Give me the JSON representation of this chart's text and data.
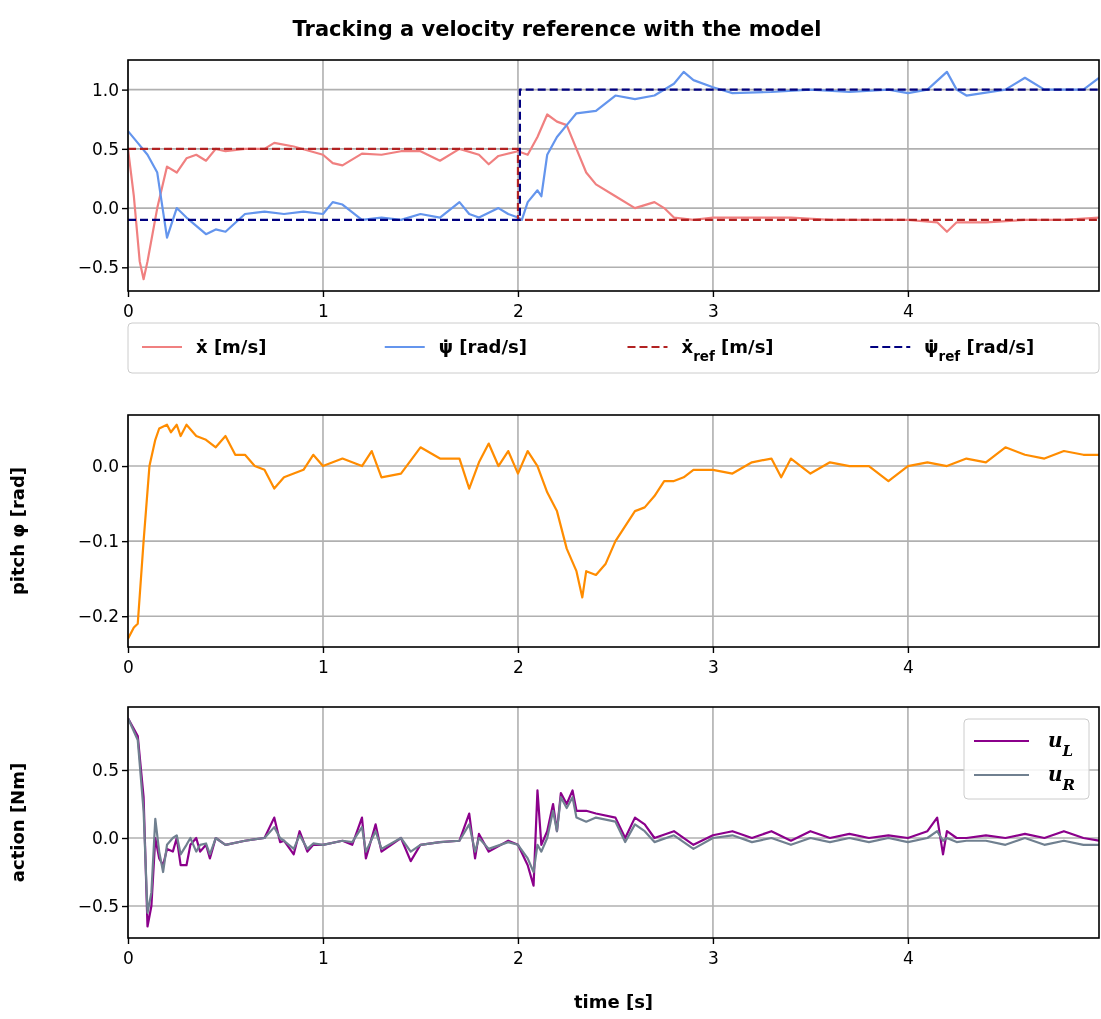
{
  "chart_data": [
    {
      "type": "line",
      "title": "Tracking a velocity reference with the model",
      "xlim": [
        0,
        4.98
      ],
      "xticks": [
        0,
        1,
        2,
        3,
        4
      ],
      "ylim": [
        -0.7,
        1.25
      ],
      "yticks": [
        {
          "value": -0.5,
          "label": "−0.5"
        },
        {
          "value": 0,
          "label": "0.0"
        },
        {
          "value": 0.5,
          "label": "0.5"
        },
        {
          "value": 1,
          "label": "1.0"
        }
      ],
      "grid": true,
      "legend": "bottom",
      "series": [
        {
          "name": "ẋ [m/s]",
          "color": "#f08080",
          "line_style": "solid",
          "x": [
            0,
            0.03,
            0.06,
            0.08,
            0.1,
            0.15,
            0.2,
            0.25,
            0.3,
            0.35,
            0.4,
            0.45,
            0.5,
            0.6,
            0.7,
            0.75,
            0.85,
            1.0,
            1.05,
            1.1,
            1.2,
            1.3,
            1.4,
            1.5,
            1.6,
            1.7,
            1.8,
            1.85,
            1.9,
            2.0,
            2.05,
            2.1,
            2.15,
            2.2,
            2.25,
            2.3,
            2.35,
            2.4,
            2.5,
            2.6,
            2.7,
            2.75,
            2.8,
            2.9,
            3.0,
            3.2,
            3.4,
            3.6,
            3.8,
            4.0,
            4.15,
            4.2,
            4.25,
            4.4,
            4.6,
            4.8,
            4.98
          ],
          "values": [
            0.5,
            0.1,
            -0.45,
            -0.6,
            -0.45,
            0.0,
            0.35,
            0.3,
            0.42,
            0.45,
            0.4,
            0.5,
            0.48,
            0.5,
            0.5,
            0.55,
            0.52,
            0.45,
            0.38,
            0.36,
            0.46,
            0.45,
            0.48,
            0.48,
            0.4,
            0.5,
            0.45,
            0.37,
            0.44,
            0.48,
            0.45,
            0.6,
            0.79,
            0.73,
            0.7,
            0.5,
            0.3,
            0.2,
            0.1,
            0.0,
            0.05,
            0.0,
            -0.08,
            -0.1,
            -0.08,
            -0.08,
            -0.08,
            -0.1,
            -0.1,
            -0.1,
            -0.12,
            -0.2,
            -0.12,
            -0.12,
            -0.1,
            -0.1,
            -0.08
          ]
        },
        {
          "name": "ψ̇ [rad/s]",
          "color": "#6495ed",
          "line_style": "solid",
          "x": [
            0,
            0.05,
            0.1,
            0.15,
            0.2,
            0.25,
            0.3,
            0.4,
            0.45,
            0.5,
            0.6,
            0.7,
            0.8,
            0.9,
            1.0,
            1.05,
            1.1,
            1.2,
            1.3,
            1.4,
            1.5,
            1.6,
            1.7,
            1.75,
            1.8,
            1.9,
            1.95,
            2.0,
            2.02,
            2.05,
            2.1,
            2.12,
            2.15,
            2.2,
            2.25,
            2.3,
            2.4,
            2.5,
            2.6,
            2.7,
            2.8,
            2.85,
            2.9,
            3.0,
            3.1,
            3.3,
            3.5,
            3.7,
            3.9,
            4.0,
            4.1,
            4.2,
            4.25,
            4.3,
            4.5,
            4.6,
            4.7,
            4.9,
            4.98
          ],
          "values": [
            0.65,
            0.55,
            0.45,
            0.3,
            -0.25,
            0.0,
            -0.08,
            -0.22,
            -0.18,
            -0.2,
            -0.05,
            -0.03,
            -0.05,
            -0.03,
            -0.05,
            0.05,
            0.03,
            -0.1,
            -0.08,
            -0.1,
            -0.05,
            -0.08,
            0.05,
            -0.05,
            -0.08,
            0.0,
            -0.05,
            -0.08,
            -0.1,
            0.05,
            0.15,
            0.1,
            0.45,
            0.6,
            0.7,
            0.8,
            0.82,
            0.95,
            0.92,
            0.95,
            1.05,
            1.15,
            1.08,
            1.02,
            0.97,
            0.98,
            1.0,
            0.98,
            1.0,
            0.97,
            1.0,
            1.15,
            1.0,
            0.95,
            1.0,
            1.1,
            1.0,
            1.0,
            1.1
          ]
        },
        {
          "name": "ẋ$_{ref}$ [m/s]",
          "color": "#b22222",
          "line_style": "dashed",
          "x": [
            0,
            2,
            2,
            4.98
          ],
          "values": [
            0.5,
            0.5,
            -0.1,
            -0.1
          ]
        },
        {
          "name": "ψ̇$_{ref}$ [rad/s]",
          "color": "#000080",
          "line_style": "dashed",
          "x": [
            0,
            2.01,
            2.01,
            4.98
          ],
          "values": [
            -0.1,
            -0.1,
            1.0,
            1.0
          ]
        }
      ]
    },
    {
      "type": "line",
      "ylabel": "pitch φ [rad]",
      "xlim": [
        0,
        4.98
      ],
      "xticks": [
        0,
        1,
        2,
        3,
        4
      ],
      "ylim": [
        -0.241,
        0.068
      ],
      "yticks": [
        {
          "value": -0.2,
          "label": "−0.2"
        },
        {
          "value": -0.1,
          "label": "−0.1"
        },
        {
          "value": 0,
          "label": "0.0"
        }
      ],
      "grid": true,
      "series": [
        {
          "color": "#ff8c00",
          "line_style": "solid",
          "x": [
            0,
            0.03,
            0.05,
            0.08,
            0.11,
            0.14,
            0.16,
            0.2,
            0.22,
            0.25,
            0.27,
            0.3,
            0.35,
            0.4,
            0.45,
            0.5,
            0.55,
            0.6,
            0.65,
            0.7,
            0.75,
            0.8,
            0.9,
            0.95,
            1.0,
            1.1,
            1.2,
            1.25,
            1.3,
            1.4,
            1.5,
            1.6,
            1.7,
            1.75,
            1.8,
            1.85,
            1.9,
            1.95,
            2.0,
            2.05,
            2.1,
            2.15,
            2.2,
            2.25,
            2.3,
            2.33,
            2.35,
            2.4,
            2.45,
            2.5,
            2.55,
            2.6,
            2.65,
            2.7,
            2.75,
            2.8,
            2.85,
            2.9,
            3.0,
            3.1,
            3.2,
            3.3,
            3.35,
            3.4,
            3.5,
            3.6,
            3.7,
            3.8,
            3.9,
            4.0,
            4.1,
            4.2,
            4.3,
            4.4,
            4.5,
            4.6,
            4.7,
            4.8,
            4.9,
            4.98
          ],
          "values": [
            -0.23,
            -0.215,
            -0.21,
            -0.1,
            0.0,
            0.035,
            0.05,
            0.055,
            0.045,
            0.055,
            0.04,
            0.055,
            0.04,
            0.035,
            0.025,
            0.04,
            0.015,
            0.015,
            0.0,
            -0.005,
            -0.03,
            -0.015,
            -0.005,
            0.015,
            0.0,
            0.01,
            0.0,
            0.02,
            -0.015,
            -0.01,
            0.025,
            0.01,
            0.01,
            -0.03,
            0.005,
            0.03,
            0.0,
            0.02,
            -0.01,
            0.02,
            0.0,
            -0.035,
            -0.06,
            -0.11,
            -0.14,
            -0.175,
            -0.14,
            -0.145,
            -0.13,
            -0.1,
            -0.08,
            -0.06,
            -0.055,
            -0.04,
            -0.02,
            -0.02,
            -0.015,
            -0.005,
            -0.005,
            -0.01,
            0.005,
            0.01,
            -0.015,
            0.01,
            -0.01,
            0.005,
            0.0,
            0.0,
            -0.02,
            0.0,
            0.005,
            0.0,
            0.01,
            0.005,
            0.025,
            0.015,
            0.01,
            0.02,
            0.015,
            0.015
          ]
        }
      ]
    },
    {
      "type": "line",
      "xlabel": "time [s]",
      "ylabel": "action [Nm]",
      "xlim": [
        0,
        4.98
      ],
      "xticks": [
        0,
        1,
        2,
        3,
        4
      ],
      "ylim": [
        -0.735,
        0.963
      ],
      "yticks": [
        {
          "value": -0.5,
          "label": "−0.5"
        },
        {
          "value": 0,
          "label": "0.0"
        },
        {
          "value": 0.5,
          "label": "0.5"
        }
      ],
      "grid": true,
      "legend": "top right",
      "x": [
        0,
        0.05,
        0.08,
        0.1,
        0.12,
        0.14,
        0.16,
        0.18,
        0.2,
        0.23,
        0.25,
        0.27,
        0.3,
        0.32,
        0.35,
        0.37,
        0.4,
        0.42,
        0.45,
        0.5,
        0.6,
        0.7,
        0.75,
        0.78,
        0.8,
        0.85,
        0.88,
        0.92,
        0.95,
        1.0,
        1.1,
        1.15,
        1.2,
        1.22,
        1.27,
        1.3,
        1.4,
        1.45,
        1.5,
        1.6,
        1.7,
        1.75,
        1.78,
        1.8,
        1.85,
        1.95,
        2.0,
        2.05,
        2.08,
        2.1,
        2.12,
        2.15,
        2.18,
        2.2,
        2.22,
        2.25,
        2.28,
        2.3,
        2.35,
        2.4,
        2.5,
        2.55,
        2.6,
        2.65,
        2.7,
        2.8,
        2.9,
        3.0,
        3.1,
        3.2,
        3.3,
        3.4,
        3.5,
        3.6,
        3.7,
        3.8,
        3.9,
        4.0,
        4.1,
        4.15,
        4.18,
        4.2,
        4.25,
        4.3,
        4.4,
        4.5,
        4.6,
        4.7,
        4.8,
        4.9,
        4.98
      ],
      "series": [
        {
          "name": "u$_{L}$",
          "color": "#8b008b",
          "line_style": "solid",
          "values": [
            0.88,
            0.75,
            0.3,
            -0.65,
            -0.5,
            0.0,
            -0.15,
            -0.2,
            -0.08,
            -0.1,
            0.0,
            -0.2,
            -0.2,
            -0.05,
            0.0,
            -0.1,
            -0.05,
            -0.15,
            0.0,
            -0.05,
            -0.02,
            0.0,
            0.15,
            -0.03,
            -0.02,
            -0.12,
            0.05,
            -0.1,
            -0.05,
            -0.05,
            -0.02,
            -0.05,
            0.15,
            -0.15,
            0.1,
            -0.1,
            0.0,
            -0.17,
            -0.05,
            -0.03,
            -0.02,
            0.18,
            -0.15,
            0.03,
            -0.1,
            -0.02,
            -0.05,
            -0.2,
            -0.35,
            0.35,
            -0.05,
            0.05,
            0.25,
            0.05,
            0.33,
            0.25,
            0.35,
            0.2,
            0.2,
            0.18,
            0.15,
            0.0,
            0.15,
            0.1,
            0.0,
            0.05,
            -0.05,
            0.02,
            0.05,
            0.0,
            0.05,
            -0.02,
            0.05,
            0.0,
            0.03,
            0.0,
            0.02,
            0.0,
            0.05,
            0.15,
            -0.12,
            0.05,
            0.0,
            0.0,
            0.02,
            0.0,
            0.03,
            0.0,
            0.05,
            0.0,
            -0.02
          ]
        },
        {
          "name": "u$_{R}$",
          "color": "#708090",
          "line_style": "solid",
          "values": [
            0.88,
            0.72,
            0.2,
            -0.55,
            -0.4,
            0.14,
            -0.1,
            -0.25,
            -0.05,
            0.0,
            0.02,
            -0.12,
            -0.05,
            0.0,
            -0.1,
            -0.05,
            -0.04,
            -0.12,
            0.0,
            -0.05,
            -0.02,
            0.0,
            0.08,
            0.0,
            -0.02,
            -0.08,
            0.02,
            -0.08,
            -0.04,
            -0.05,
            -0.02,
            -0.03,
            0.08,
            -0.1,
            0.05,
            -0.08,
            0.0,
            -0.1,
            -0.05,
            -0.03,
            -0.02,
            0.1,
            -0.1,
            0.0,
            -0.08,
            -0.03,
            -0.05,
            -0.15,
            -0.25,
            -0.05,
            -0.1,
            0.0,
            0.2,
            0.05,
            0.3,
            0.22,
            0.3,
            0.15,
            0.12,
            0.15,
            0.12,
            -0.03,
            0.1,
            0.05,
            -0.03,
            0.02,
            -0.08,
            0.0,
            0.02,
            -0.03,
            0.0,
            -0.05,
            0.0,
            -0.03,
            0.0,
            -0.03,
            0.0,
            -0.03,
            0.0,
            0.05,
            -0.02,
            0.0,
            -0.03,
            -0.02,
            -0.02,
            -0.05,
            0.0,
            -0.05,
            -0.02,
            -0.05,
            -0.05
          ]
        }
      ]
    }
  ]
}
